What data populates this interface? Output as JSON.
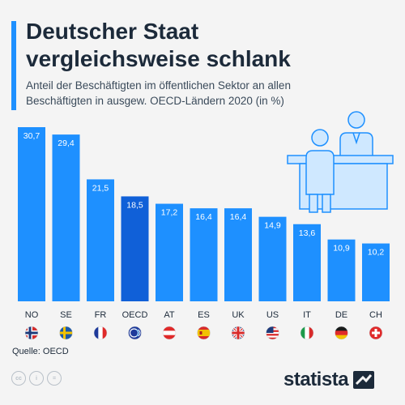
{
  "title_line1": "Deutscher Staat",
  "title_line2": "vergleichsweise schlank",
  "subtitle_line1": "Anteil der Beschäftigten im öffentlichen Sektor an allen",
  "subtitle_line2": "Beschäftigten in ausgew. OECD-Ländern 2020 (in %)",
  "source": "Quelle: OECD",
  "logo": "statista",
  "colors": {
    "bar": "#1e90ff",
    "highlight": "#1060d8",
    "accent": "#1e90ff"
  },
  "chart_data": {
    "type": "bar",
    "categories": [
      "NO",
      "SE",
      "FR",
      "OECD",
      "AT",
      "ES",
      "UK",
      "US",
      "IT",
      "DE",
      "CH"
    ],
    "values": [
      30.7,
      29.4,
      21.5,
      18.5,
      17.2,
      16.4,
      16.4,
      14.9,
      13.6,
      10.9,
      10.2
    ],
    "value_labels": [
      "30,7",
      "29,4",
      "21,5",
      "18,5",
      "17,2",
      "16,4",
      "16,4",
      "14,9",
      "13,6",
      "10,9",
      "10,2"
    ],
    "highlight": "OECD",
    "flags": [
      "flag-norway",
      "flag-sweden",
      "flag-france",
      "flag-oecd",
      "flag-austria",
      "flag-spain",
      "flag-uk",
      "flag-usa",
      "flag-italy",
      "flag-germany",
      "flag-switzerland"
    ],
    "ylim": [
      0,
      30.7
    ],
    "grid": false,
    "legend": "none"
  }
}
